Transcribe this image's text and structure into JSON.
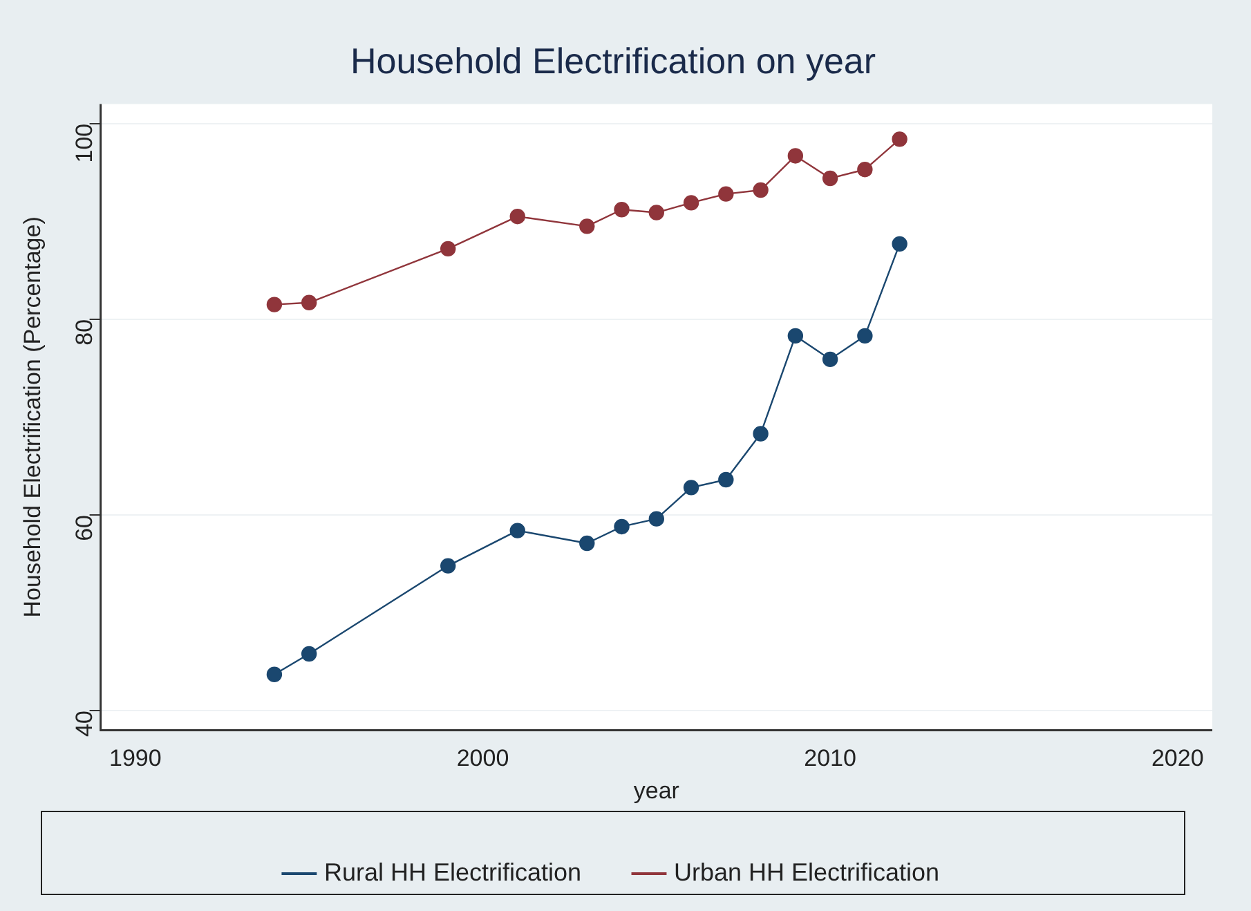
{
  "chart_data": {
    "type": "line",
    "title": "Household Electrification on year",
    "xlabel": "year",
    "ylabel": "Household Electrification (Percentage)",
    "x": [
      1994,
      1995,
      1999,
      2001,
      2003,
      2004,
      2005,
      2006,
      2007,
      2008,
      2009,
      2010,
      2011,
      2012
    ],
    "series": [
      {
        "name": "Rural HH Electrification",
        "color": "#1a476f",
        "values": [
          43.7,
          45.8,
          54.8,
          58.4,
          57.1,
          58.8,
          59.6,
          62.8,
          63.6,
          68.3,
          78.3,
          75.9,
          78.3,
          87.7
        ]
      },
      {
        "name": "Urban HH Electrification",
        "color": "#90353b",
        "values": [
          81.5,
          81.7,
          87.2,
          90.5,
          89.5,
          91.2,
          90.9,
          91.9,
          92.8,
          93.2,
          96.7,
          94.4,
          95.3,
          98.4
        ]
      }
    ],
    "xlim": [
      1989,
      2021
    ],
    "xticks": [
      1990,
      2000,
      2010,
      2020
    ],
    "ylim": [
      38,
      102
    ],
    "yticks": [
      40,
      60,
      80,
      100
    ],
    "grid": "y",
    "legend": "bottom",
    "marker": "circle",
    "line_style": "solid"
  }
}
